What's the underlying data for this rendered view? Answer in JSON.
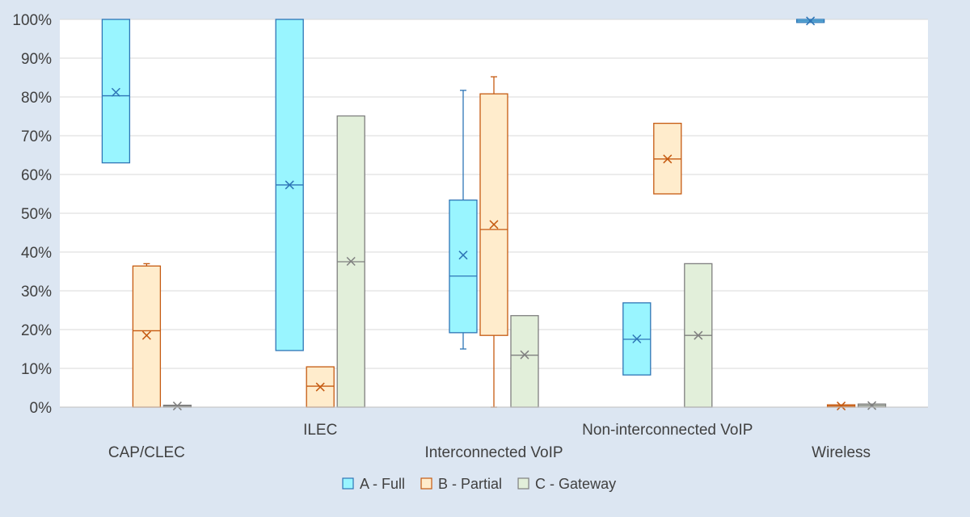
{
  "chart_data": {
    "type": "boxplot",
    "title": "",
    "xlabel": "",
    "ylabel": "",
    "ylim": [
      0,
      100
    ],
    "y_tick_format": "percent",
    "y_ticks": [
      0,
      10,
      20,
      30,
      40,
      50,
      60,
      70,
      80,
      90,
      100
    ],
    "y_tick_labels": [
      "0%",
      "10%",
      "20%",
      "30%",
      "40%",
      "50%",
      "60%",
      "70%",
      "80%",
      "90%",
      "100%"
    ],
    "grid": true,
    "legend_position": "bottom",
    "categories": [
      "CAP/CLEC",
      "ILEC",
      "Interconnected VoIP",
      "Non-interconnected VoIP",
      "Wireless"
    ],
    "series": [
      {
        "name": "A - Full",
        "color": "#2e75b6",
        "fill": "#99f5ff",
        "boxes": [
          {
            "min": 63,
            "q1": 63,
            "median": 80.3,
            "q3": 100,
            "max": 100,
            "mean": 81.2
          },
          {
            "min": 14.6,
            "q1": 14.6,
            "median": 57.3,
            "q3": 100,
            "max": 100,
            "mean": 57.3
          },
          {
            "min": 15,
            "q1": 19.2,
            "median": 33.8,
            "q3": 53.4,
            "max": 81.7,
            "mean": 39.2
          },
          {
            "min": 8.3,
            "q1": 8.3,
            "median": 17.5,
            "q3": 26.9,
            "max": 26.9,
            "mean": 17.6
          },
          {
            "min": 99.2,
            "q1": 99.2,
            "median": 99.6,
            "q3": 100,
            "max": 100,
            "mean": 99.6
          }
        ]
      },
      {
        "name": "B - Partial",
        "color": "#c55a11",
        "fill": "#ffeccc",
        "boxes": [
          {
            "min": 0,
            "q1": 0,
            "median": 19.7,
            "q3": 36.4,
            "max": 37,
            "mean": 18.5
          },
          {
            "min": 0,
            "q1": 0,
            "median": 5.4,
            "q3": 10.4,
            "max": 10.4,
            "mean": 5.2
          },
          {
            "min": 0,
            "q1": 18.5,
            "median": 45.8,
            "q3": 80.8,
            "max": 85.2,
            "mean": 47.1
          },
          {
            "min": 55,
            "q1": 55,
            "median": 64,
            "q3": 73.2,
            "max": 73.2,
            "mean": 64
          },
          {
            "min": 0,
            "q1": 0,
            "median": 0.3,
            "q3": 0.6,
            "max": 0.6,
            "mean": 0.3
          }
        ]
      },
      {
        "name": "C - Gateway",
        "color": "#7f7f7f",
        "fill": "#e2efda",
        "boxes": [
          {
            "min": 0,
            "q1": 0,
            "median": 0.3,
            "q3": 0.5,
            "max": 0.5,
            "mean": 0.3
          },
          {
            "min": 0,
            "q1": 0,
            "median": 37.5,
            "q3": 75.1,
            "max": 75.1,
            "mean": 37.6
          },
          {
            "min": 0,
            "q1": 0,
            "median": 13.4,
            "q3": 23.6,
            "max": 23.6,
            "mean": 13.5
          },
          {
            "min": 0,
            "q1": 0,
            "median": 18.5,
            "q3": 37,
            "max": 37,
            "mean": 18.5
          },
          {
            "min": 0,
            "q1": 0,
            "median": 0.4,
            "q3": 0.8,
            "max": 0.8,
            "mean": 0.4
          }
        ]
      }
    ]
  }
}
